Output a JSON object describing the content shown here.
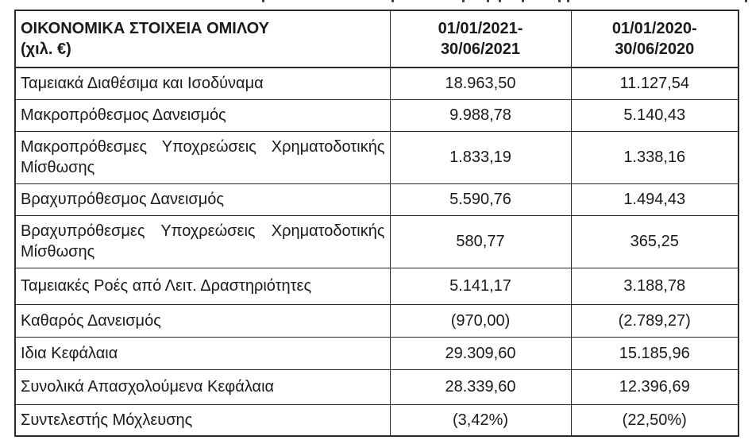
{
  "colors": {
    "background": "#ffffff",
    "text": "#1a1a1a",
    "border": "#2b2b2b"
  },
  "table": {
    "header": {
      "title_line1": "ΟΙΚΟΝΟΜΙΚΑ ΣΤΟΙΧΕΙΑ ΟΜΙΛΟΥ",
      "title_line2": "(χιλ. €)",
      "col1_line1": "01/01/2021-",
      "col1_line2": "30/06/2021",
      "col2_line1": "01/01/2020-",
      "col2_line2": "30/06/2020"
    },
    "rows": [
      {
        "label": "Ταμειακά Διαθέσιμα και Ισοδύναμα",
        "v2021": "18.963,50",
        "v2020": "11.127,54"
      },
      {
        "label": "Μακροπρόθεσμος Δανεισμός",
        "v2021": "9.988,78",
        "v2020": "5.140,43"
      },
      {
        "label": "Μακροπρόθεσμες Υποχρεώσεις Χρηματοδοτικής Μίσθωσης",
        "v2021": "1.833,19",
        "v2020": "1.338,16"
      },
      {
        "label": "Βραχυπρόθεσμος Δανεισμός",
        "v2021": "5.590,76",
        "v2020": "1.494,43"
      },
      {
        "label": "Βραχυπρόθεσμες Υποχρεώσεις Χρηματοδοτικής Μίσθωσης",
        "v2021": "580,77",
        "v2020": "365,25"
      },
      {
        "label": "Ταμειακές Ροές από Λειτ. Δραστηριότητες",
        "v2021": "5.141,17",
        "v2020": "3.188,78"
      },
      {
        "label": "Καθαρός Δανεισμός",
        "v2021": "(970,00)",
        "v2020": "(2.789,27)"
      },
      {
        "label": "Ιδια Κεφάλαια",
        "v2021": "29.309,60",
        "v2020": "15.185,96"
      },
      {
        "label": "Συνολικά Απασχολούμενα Κεφάλαια",
        "v2021": "28.339,60",
        "v2020": "12.396,69"
      },
      {
        "label": "Συντελεστής Μόχλευσης",
        "v2021": "(3,42%)",
        "v2020": "(22,50%)"
      }
    ]
  }
}
